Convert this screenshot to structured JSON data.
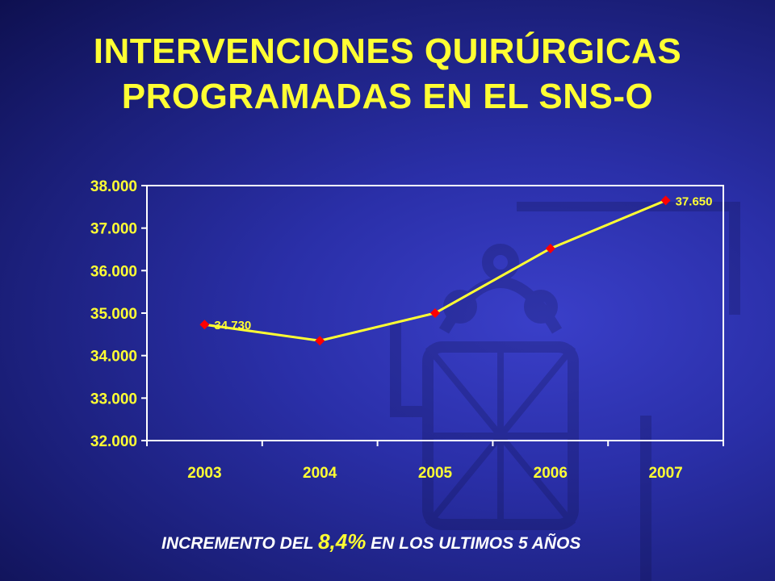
{
  "title_line1": "INTERVENCIONES QUIRÚRGICAS",
  "title_line2": "PROGRAMADAS EN EL SNS-O",
  "footnote": {
    "before": "INCREMENTO DEL ",
    "highlight": "8,4%",
    "after": " EN LOS ULTIMOS 5 AÑOS"
  },
  "colors": {
    "title": "#ffff33",
    "line": "#ffff33",
    "marker": "#ff0000",
    "axis": "#ffffff"
  },
  "watermark_icon": "navarra-coat-of-arms-cross-icon",
  "chart_data": {
    "type": "line",
    "categories": [
      "2003",
      "2004",
      "2005",
      "2006",
      "2007"
    ],
    "values": [
      34730,
      34350,
      35000,
      36520,
      37650
    ],
    "y_ticks": [
      "32.000",
      "33.000",
      "34.000",
      "35.000",
      "36.000",
      "37.000",
      "38.000"
    ],
    "ylim": [
      32000,
      38000
    ],
    "data_labels": [
      {
        "index": 0,
        "text": "34.730"
      },
      {
        "index": 4,
        "text": "37.650"
      }
    ],
    "grid": false,
    "legend": false
  }
}
